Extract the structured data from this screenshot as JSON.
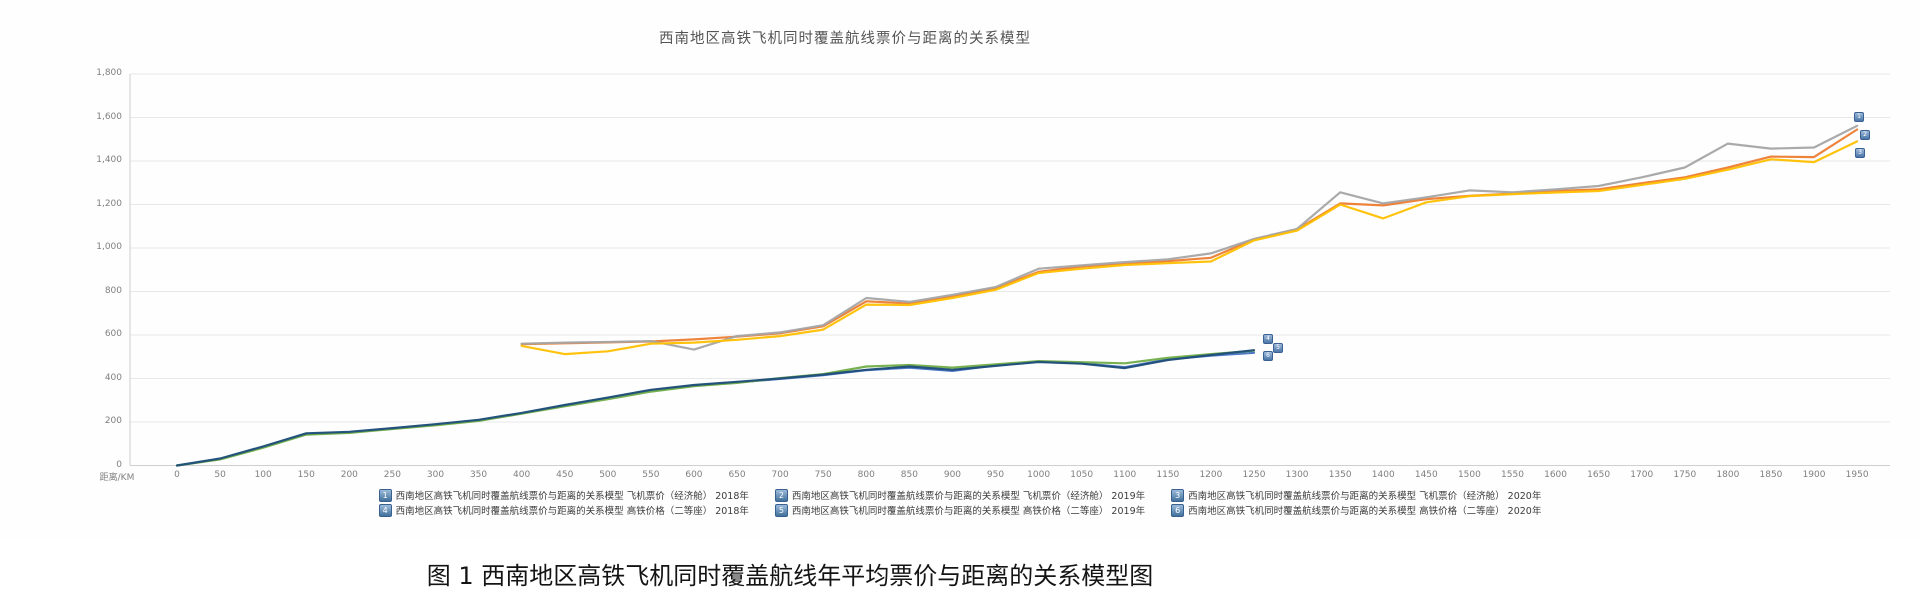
{
  "title": "西南地区高铁飞机同时覆盖航线票价与距离的关系模型",
  "caption": "图 1 西南地区高铁飞机同时覆盖航线年平均票价与距离的关系模型图",
  "axes": {
    "x_title": "距离/KM",
    "x_ticks": [
      "0",
      "50",
      "100",
      "150",
      "200",
      "250",
      "300",
      "350",
      "400",
      "450",
      "500",
      "550",
      "600",
      "650",
      "700",
      "750",
      "800",
      "850",
      "900",
      "950",
      "1000",
      "1050",
      "1100",
      "1150",
      "1200",
      "1250",
      "1300",
      "1350",
      "1400",
      "1450",
      "1500",
      "1550",
      "1600",
      "1650",
      "1700",
      "1750",
      "1800",
      "1850",
      "1900",
      "1950"
    ],
    "y_ticks": [
      "0",
      "200",
      "400",
      "600",
      "800",
      "1,000",
      "1,200",
      "1,400",
      "1,600",
      "1,800"
    ]
  },
  "legend": [
    {
      "num": "1",
      "label": "西南地区高铁飞机同时覆盖航线票价与距离的关系模型 飞机票价（经济舱） 2018年"
    },
    {
      "num": "2",
      "label": "西南地区高铁飞机同时覆盖航线票价与距离的关系模型 飞机票价（经济舱） 2019年"
    },
    {
      "num": "3",
      "label": "西南地区高铁飞机同时覆盖航线票价与距离的关系模型 飞机票价（经济舱） 2020年"
    },
    {
      "num": "4",
      "label": "西南地区高铁飞机同时覆盖航线票价与距离的关系模型 高铁价格（二等座） 2018年"
    },
    {
      "num": "5",
      "label": "西南地区高铁飞机同时覆盖航线票价与距离的关系模型 高铁价格（二等座） 2019年"
    },
    {
      "num": "6",
      "label": "西南地区高铁飞机同时覆盖航线票价与距离的关系模型 高铁价格（二等座） 2020年"
    }
  ],
  "chart_data": {
    "type": "line",
    "title": "西南地区高铁飞机同时覆盖航线票价与距离的关系模型",
    "xlabel": "距离/KM",
    "ylabel": "",
    "grid": true,
    "legend_position": "bottom",
    "ylim": [
      0,
      1800
    ],
    "y_tick_step": 200,
    "x_km": [
      0,
      50,
      100,
      150,
      200,
      250,
      300,
      350,
      400,
      450,
      500,
      550,
      600,
      650,
      700,
      750,
      800,
      850,
      900,
      950,
      1000,
      1050,
      1100,
      1150,
      1200,
      1250,
      1300,
      1350,
      1400,
      1450,
      1500,
      1550,
      1600,
      1650,
      1700,
      1750,
      1800,
      1850,
      1900,
      1950
    ],
    "series": [
      {
        "marker": "1",
        "name": "飞机票价（经济舱）2018年",
        "color": "#ED7D31",
        "start_km": 400,
        "values": [
          558,
          562,
          566,
          570,
          580,
          592,
          608,
          640,
          755,
          745,
          778,
          815,
          890,
          915,
          928,
          940,
          955,
          1040,
          1085,
          1205,
          1196,
          1225,
          1240,
          1250,
          1262,
          1270,
          1298,
          1325,
          1370,
          1420,
          1418,
          1545
        ]
      },
      {
        "marker": "2",
        "name": "飞机票价（经济舱）2019年",
        "color": "#A5A5A5",
        "start_km": 400,
        "values": [
          560,
          565,
          568,
          572,
          533,
          595,
          612,
          645,
          770,
          752,
          785,
          820,
          905,
          920,
          935,
          948,
          975,
          1042,
          1088,
          1256,
          1205,
          1233,
          1265,
          1256,
          1270,
          1285,
          1325,
          1370,
          1480,
          1457,
          1462,
          1562
        ]
      },
      {
        "marker": "3",
        "name": "飞机票价（经济舱）2020年",
        "color": "#FFC000",
        "start_km": 400,
        "values": [
          550,
          512,
          525,
          560,
          565,
          578,
          595,
          625,
          740,
          738,
          770,
          808,
          885,
          905,
          922,
          930,
          938,
          1035,
          1080,
          1200,
          1136,
          1210,
          1238,
          1248,
          1255,
          1262,
          1290,
          1318,
          1360,
          1408,
          1395,
          1490
        ]
      },
      {
        "marker": "4",
        "name": "高铁价格（二等座）2018年",
        "color": "#4472C4",
        "start_km": 0,
        "values": [
          0,
          30,
          85,
          145,
          152,
          170,
          188,
          207,
          240,
          276,
          310,
          345,
          368,
          382,
          398,
          415,
          438,
          450,
          435,
          460,
          478,
          470,
          452,
          488,
          505,
          518
        ]
      },
      {
        "marker": "5",
        "name": "高铁价格（二等座）2019年",
        "color": "#70AD47",
        "start_km": 0,
        "values": [
          0,
          28,
          82,
          142,
          150,
          168,
          185,
          205,
          238,
          272,
          305,
          340,
          365,
          380,
          402,
          420,
          455,
          462,
          450,
          465,
          480,
          475,
          470,
          495,
          512,
          528
        ]
      },
      {
        "marker": "6",
        "name": "高铁价格（二等座）2020年",
        "color": "#1F4E79",
        "start_km": 0,
        "values": [
          0,
          32,
          88,
          148,
          155,
          172,
          190,
          210,
          242,
          278,
          312,
          348,
          370,
          385,
          400,
          418,
          440,
          455,
          440,
          458,
          476,
          468,
          448,
          485,
          508,
          530
        ]
      }
    ]
  }
}
